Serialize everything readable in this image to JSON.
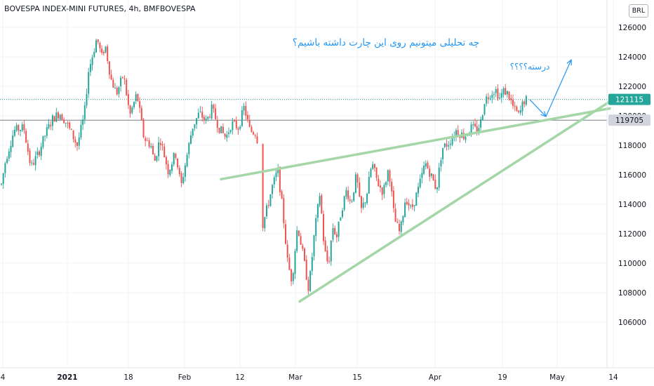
{
  "header": {
    "title": "BOVESPA INDEX-MINI FUTURES, 4h, BMFBOVESPA",
    "currency": "BRL"
  },
  "annotations": {
    "question": "چه تحلیلی میتونیم روی این چارت داشته باشیم؟",
    "correct": "درسته؟؟؟؟"
  },
  "colors": {
    "up": "#26a69a",
    "down": "#ef5350",
    "trendline": "#a5d6a7",
    "annotation": "#2196f3",
    "last_price": "#26a69a",
    "level": "#787b86"
  },
  "chart_data": {
    "type": "candlestick",
    "title": "BOVESPA INDEX-MINI FUTURES, 4h, BMFBOVESPA",
    "ylim": [
      105500,
      127000
    ],
    "y_ticks": [
      106000,
      108000,
      110000,
      112000,
      114000,
      116000,
      118000,
      120000,
      122000,
      124000,
      126000
    ],
    "y_tick_labels": [
      "106000",
      "108000",
      "110000",
      "112000",
      "114000",
      "116000",
      "118000",
      "120000",
      "122000",
      "124000",
      "126000"
    ],
    "x_ticks": [
      "4",
      "2021",
      "18",
      "Feb",
      "12",
      "Mar",
      "15",
      "Apr",
      "19",
      "May",
      "14"
    ],
    "last_price": "121115",
    "level": "119705",
    "close_path": [
      [
        0,
        114800
      ],
      [
        8,
        117000
      ],
      [
        20,
        119000
      ],
      [
        34,
        119200
      ],
      [
        44,
        116500
      ],
      [
        55,
        117500
      ],
      [
        65,
        118800
      ],
      [
        75,
        119800
      ],
      [
        85,
        120200
      ],
      [
        95,
        119500
      ],
      [
        110,
        118000
      ],
      [
        120,
        120000
      ],
      [
        126,
        123000
      ],
      [
        134,
        124500
      ],
      [
        138,
        125300
      ],
      [
        145,
        124000
      ],
      [
        150,
        124800
      ],
      [
        158,
        122500
      ],
      [
        166,
        121500
      ],
      [
        176,
        122800
      ],
      [
        185,
        120000
      ],
      [
        195,
        121500
      ],
      [
        205,
        118500
      ],
      [
        215,
        118000
      ],
      [
        220,
        116800
      ],
      [
        228,
        118500
      ],
      [
        240,
        116200
      ],
      [
        250,
        117500
      ],
      [
        258,
        115200
      ],
      [
        266,
        117200
      ],
      [
        274,
        119200
      ],
      [
        284,
        120200
      ],
      [
        294,
        119600
      ],
      [
        302,
        120500
      ],
      [
        312,
        119200
      ],
      [
        322,
        118500
      ],
      [
        330,
        119500
      ],
      [
        340,
        119200
      ],
      [
        348,
        120600
      ],
      [
        356,
        119000
      ],
      [
        366,
        118800
      ],
      [
        374,
        112500
      ],
      [
        382,
        114000
      ],
      [
        388,
        115200
      ],
      [
        396,
        116300
      ],
      [
        403,
        113500
      ],
      [
        410,
        110000
      ],
      [
        416,
        108800
      ],
      [
        424,
        112600
      ],
      [
        432,
        110500
      ],
      [
        440,
        108200
      ],
      [
        448,
        112000
      ],
      [
        456,
        114800
      ],
      [
        462,
        111000
      ],
      [
        468,
        109800
      ],
      [
        474,
        112500
      ],
      [
        480,
        111800
      ],
      [
        486,
        113500
      ],
      [
        494,
        115000
      ],
      [
        500,
        114000
      ],
      [
        508,
        116000
      ],
      [
        514,
        113500
      ],
      [
        522,
        114500
      ],
      [
        530,
        116800
      ],
      [
        538,
        115500
      ],
      [
        546,
        114800
      ],
      [
        554,
        116500
      ],
      [
        562,
        113000
      ],
      [
        570,
        112000
      ],
      [
        578,
        114500
      ],
      [
        586,
        113600
      ],
      [
        596,
        115000
      ],
      [
        606,
        116800
      ],
      [
        614,
        116000
      ],
      [
        622,
        115000
      ],
      [
        630,
        117800
      ],
      [
        640,
        118200
      ],
      [
        650,
        119000
      ],
      [
        662,
        118600
      ],
      [
        672,
        119200
      ],
      [
        680,
        119000
      ],
      [
        686,
        119700
      ],
      [
        690,
        121000
      ],
      [
        698,
        121500
      ],
      [
        706,
        121800
      ],
      [
        712,
        121200
      ],
      [
        718,
        121700
      ],
      [
        724,
        121500
      ],
      [
        732,
        120500
      ],
      [
        740,
        120000
      ],
      [
        746,
        121000
      ],
      [
        752,
        121115
      ]
    ],
    "trendlines": [
      {
        "x": [
          315,
          869
        ],
        "y": [
          115700,
          120500
        ]
      },
      {
        "x": [
          427,
          870
        ],
        "y": [
          107400,
          121000
        ]
      }
    ],
    "arrows": [
      {
        "x": [
          755,
          778
        ],
        "y": [
          121100,
          119950
        ]
      },
      {
        "x": [
          778,
          814
        ],
        "y": [
          119950,
          123800
        ]
      }
    ]
  }
}
